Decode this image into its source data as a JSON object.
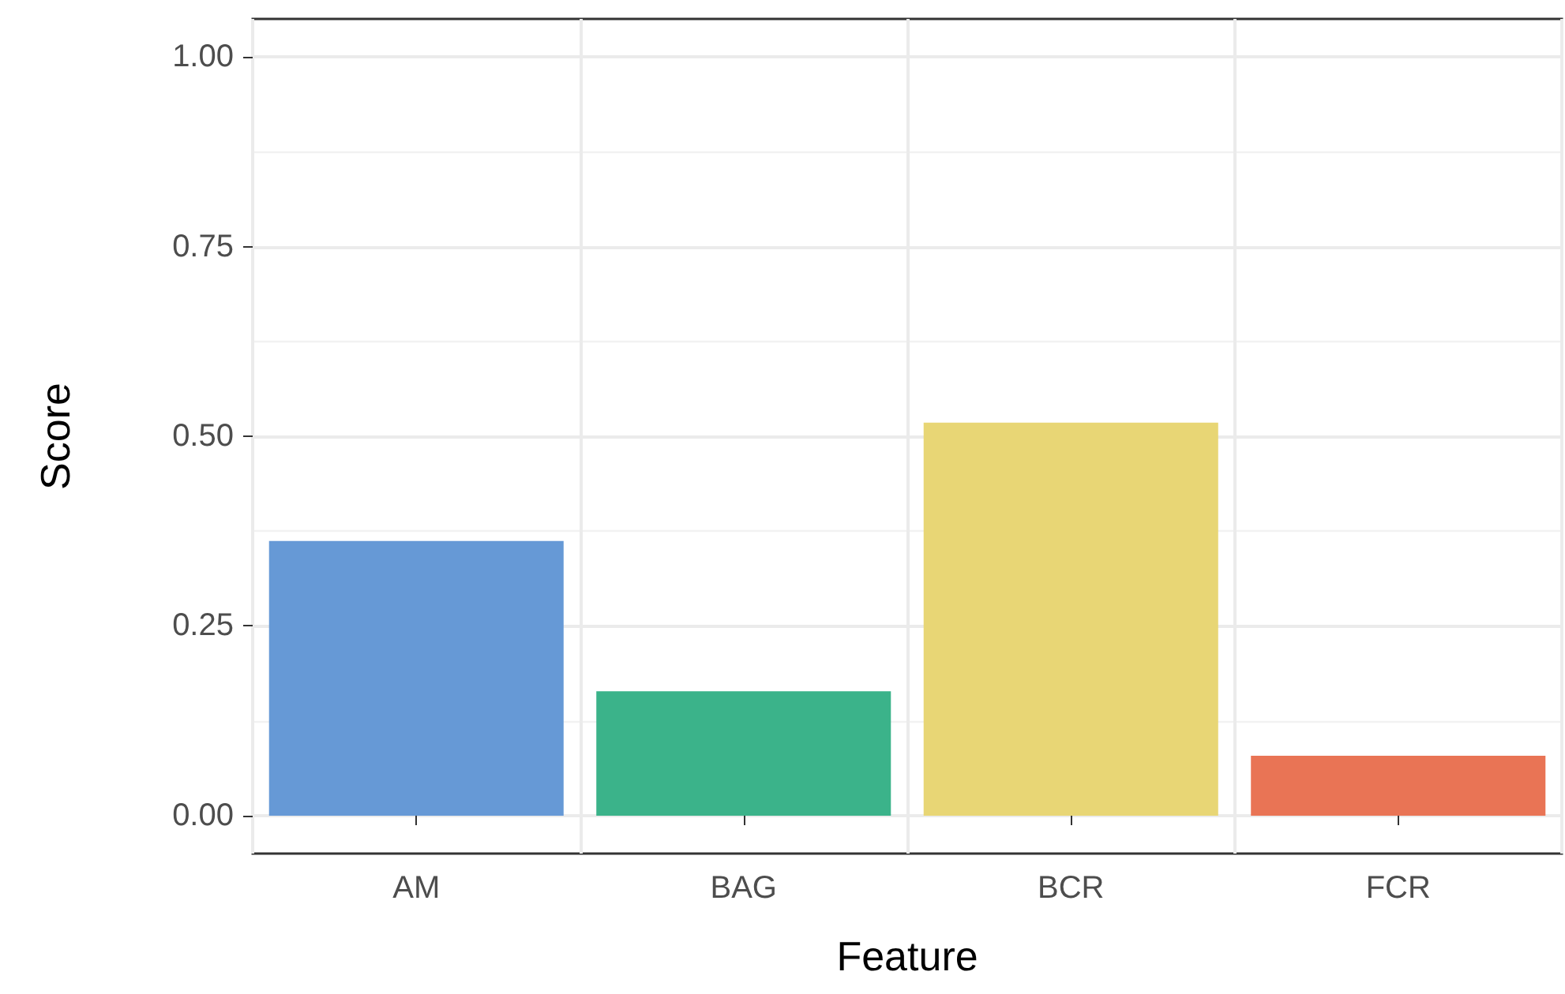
{
  "chart_data": {
    "type": "bar",
    "xlabel": "Feature",
    "ylabel": "Score",
    "categories": [
      "AM",
      "BAG",
      "BCR",
      "FCR"
    ],
    "values": [
      0.362,
      0.164,
      0.518,
      0.079
    ],
    "colors": [
      "#6699d6",
      "#3bb38a",
      "#e8d675",
      "#e97455"
    ],
    "ylim": [
      -0.05,
      1.05
    ],
    "yticks": [
      {
        "value": 0,
        "label": "0.00"
      },
      {
        "value": 0.25,
        "label": "0.25"
      },
      {
        "value": 0.5,
        "label": "0.50"
      },
      {
        "value": 0.75,
        "label": "0.75"
      },
      {
        "value": 1,
        "label": "1.00"
      }
    ],
    "grid": true
  }
}
